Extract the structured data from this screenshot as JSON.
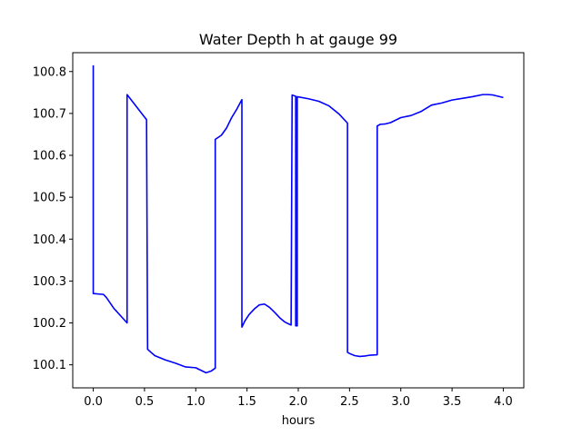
{
  "chart_data": {
    "type": "line",
    "title": "Water Depth h at gauge 99",
    "xlabel": "hours",
    "ylabel": "",
    "xlim": [
      -0.2,
      4.2
    ],
    "ylim": [
      100.045,
      100.845
    ],
    "xticks": [
      0.0,
      0.5,
      1.0,
      1.5,
      2.0,
      2.5,
      3.0,
      3.5,
      4.0
    ],
    "xtick_labels": [
      "0.0",
      "0.5",
      "1.0",
      "1.5",
      "2.0",
      "2.5",
      "3.0",
      "3.5",
      "4.0"
    ],
    "yticks": [
      100.1,
      100.2,
      100.3,
      100.4,
      100.5,
      100.6,
      100.7,
      100.8
    ],
    "ytick_labels": [
      "100.1",
      "100.2",
      "100.3",
      "100.4",
      "100.5",
      "100.6",
      "100.7",
      "100.8"
    ],
    "grid": false,
    "colors": {
      "line": "#0000ff",
      "axes": "#000000",
      "background": "#ffffff"
    },
    "series": [
      {
        "x": [
          0.0,
          0.0,
          0.1,
          0.13,
          0.2,
          0.33,
          0.33,
          0.52,
          0.53,
          0.6,
          0.7,
          0.8,
          0.9,
          1.0,
          1.05,
          1.1,
          1.15,
          1.19,
          1.19,
          1.25,
          1.3,
          1.35,
          1.4,
          1.45,
          1.45,
          1.48,
          1.52,
          1.57,
          1.62,
          1.67,
          1.72,
          1.77,
          1.82,
          1.87,
          1.92,
          1.93,
          1.94,
          1.975,
          1.975,
          1.99,
          1.99,
          2.1,
          2.2,
          2.3,
          2.4,
          2.48,
          2.48,
          2.5,
          2.55,
          2.6,
          2.65,
          2.7,
          2.77,
          2.77,
          2.8,
          2.85,
          2.9,
          3.0,
          3.1,
          3.2,
          3.3,
          3.4,
          3.5,
          3.6,
          3.7,
          3.8,
          3.85,
          3.9,
          4.0
        ],
        "y": [
          100.815,
          100.27,
          100.268,
          100.26,
          100.235,
          100.2,
          100.745,
          100.685,
          100.137,
          100.122,
          100.112,
          100.104,
          100.095,
          100.093,
          100.087,
          100.081,
          100.085,
          100.092,
          100.638,
          100.648,
          100.665,
          100.69,
          100.71,
          100.733,
          100.19,
          100.205,
          100.22,
          100.233,
          100.243,
          100.245,
          100.237,
          100.225,
          100.212,
          100.202,
          100.196,
          100.195,
          100.744,
          100.741,
          100.193,
          100.193,
          100.74,
          100.735,
          100.729,
          100.718,
          100.698,
          100.677,
          100.13,
          100.127,
          100.122,
          100.12,
          100.121,
          100.123,
          100.124,
          100.67,
          100.674,
          100.675,
          100.678,
          100.69,
          100.695,
          100.705,
          100.72,
          100.725,
          100.732,
          100.736,
          100.74,
          100.745,
          100.745,
          100.744,
          100.738
        ]
      }
    ]
  }
}
